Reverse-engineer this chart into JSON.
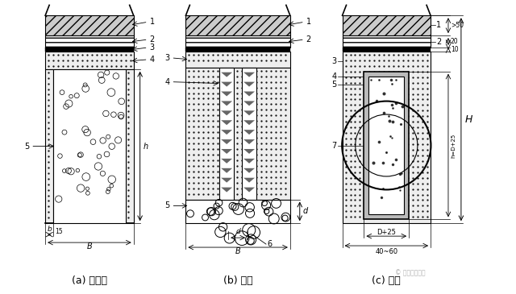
{
  "labels": {
    "a": "(a) 暗沟式",
    "b": "(b) 洞式",
    "c": "(c) 管式"
  },
  "watermark": "© 锦龙路桥市政",
  "background": "#ffffff"
}
